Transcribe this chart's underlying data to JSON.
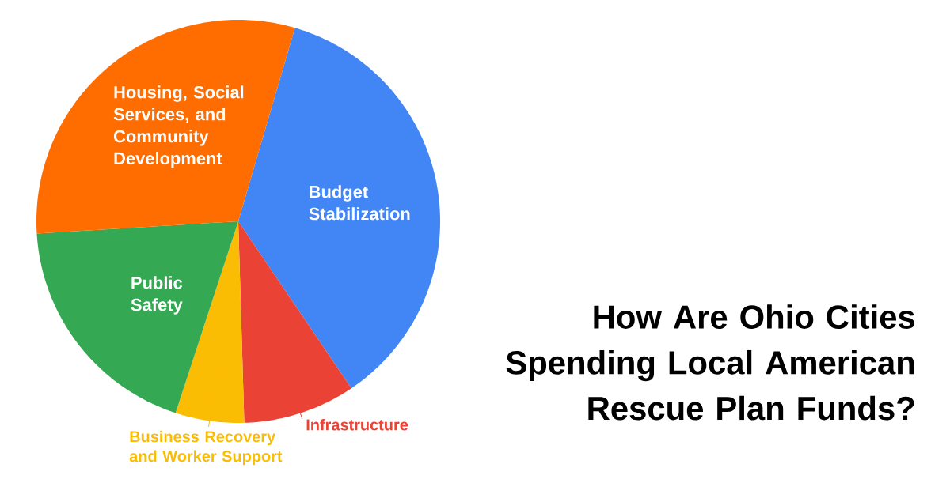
{
  "chart_data": {
    "type": "pie",
    "title": "How Are Ohio Cities Spending Local American Rescue Plan Funds?",
    "categories": [
      "Budget Stabilization",
      "Infrastructure",
      "Business Recovery and Worker Support",
      "Public Safety",
      "Housing, Social Services, and Community Development"
    ],
    "values": [
      36,
      9,
      5.5,
      19,
      30.5
    ],
    "colors": [
      "#4285f4",
      "#ea4335",
      "#fbbc04",
      "#34a853",
      "#ff6d01"
    ]
  }
}
